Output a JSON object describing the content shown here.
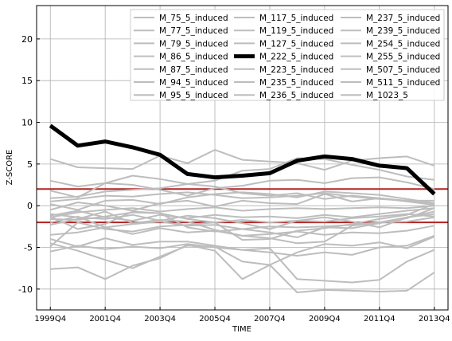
{
  "chart_data": {
    "type": "line",
    "title": "",
    "xlabel": "TIME",
    "ylabel": "Z-SCORE",
    "x_categories": [
      "1999Q4",
      "2000Q4",
      "2001Q4",
      "2002Q4",
      "2003Q4",
      "2004Q4",
      "2005Q4",
      "2006Q4",
      "2007Q4",
      "2008Q4",
      "2009Q4",
      "2010Q4",
      "2011Q4",
      "2012Q4",
      "2013Q4"
    ],
    "x_tick_labels": [
      "1999Q4",
      "2001Q4",
      "2003Q4",
      "2005Q4",
      "2007Q4",
      "2009Q4",
      "2011Q4",
      "2013Q4"
    ],
    "ylim": [
      -12.5,
      24
    ],
    "y_ticks": [
      -10,
      -5,
      0,
      5,
      10,
      15,
      20
    ],
    "grid": true,
    "legend_position": "top-right",
    "reference_lines": [
      {
        "y": 2,
        "color": "#b22222"
      },
      {
        "y": -2,
        "color": "#b22222"
      }
    ],
    "colors": {
      "background_series": "#bdbdbd",
      "highlight_series": "#000000",
      "reference": "#b22222"
    },
    "highlight_series": "M_222_5_induced",
    "series": [
      {
        "name": "M_75_5_induced",
        "values": [
          5.6,
          4.6,
          4.5,
          4.4,
          6.0,
          5.1,
          6.7,
          5.5,
          5.3,
          5.1,
          4.3,
          5.4,
          5.7,
          5.9,
          4.8
        ]
      },
      {
        "name": "M_77_5_induced",
        "values": [
          3.0,
          2.3,
          2.7,
          3.6,
          3.2,
          2.6,
          3.0,
          4.2,
          4.4,
          5.7,
          5.6,
          4.9,
          4.3,
          3.5,
          3.1
        ]
      },
      {
        "name": "M_79_5_induced",
        "values": [
          1.8,
          1.0,
          2.7,
          2.5,
          1.9,
          1.2,
          2.1,
          2.4,
          3.0,
          3.1,
          2.7,
          3.3,
          3.4,
          2.8,
          2.0
        ]
      },
      {
        "name": "M_86_5_induced",
        "values": [
          0.9,
          1.1,
          1.7,
          1.9,
          2.1,
          2.6,
          2.3,
          1.5,
          1.2,
          1.5,
          0.8,
          1.2,
          0.9,
          0.6,
          0.6
        ]
      },
      {
        "name": "M_87_5_induced",
        "values": [
          0.2,
          -0.5,
          0.6,
          0.7,
          0.2,
          1.0,
          1.4,
          1.6,
          1.4,
          1.0,
          1.7,
          1.5,
          1.3,
          0.8,
          0.3
        ]
      },
      {
        "name": "M_94_5_induced",
        "values": [
          -0.5,
          0.4,
          0.0,
          -0.6,
          0.3,
          0.6,
          -0.1,
          0.6,
          0.3,
          0.2,
          1.4,
          0.5,
          0.9,
          0.5,
          0.1
        ]
      },
      {
        "name": "M_95_5_induced",
        "values": [
          -1.4,
          -0.8,
          -0.5,
          -0.3,
          -0.7,
          -0.4,
          -0.2,
          -0.6,
          -0.4,
          -0.3,
          -0.4,
          -0.3,
          -0.2,
          -0.3,
          0.0
        ]
      },
      {
        "name": "M_117_5_induced",
        "values": [
          -1.2,
          -0.6,
          -1.4,
          -1.8,
          -1.1,
          -1.5,
          -1.1,
          -1.4,
          -1.3,
          -1.5,
          -1.1,
          -1.4,
          -1.0,
          -0.6,
          -0.3
        ]
      },
      {
        "name": "M_119_5_induced",
        "values": [
          -1.6,
          -1.7,
          -1.3,
          -0.8,
          -0.9,
          -1.6,
          -2.0,
          -1.7,
          -2.0,
          -1.8,
          -1.9,
          -1.5,
          -1.3,
          -1.0,
          -1.3
        ]
      },
      {
        "name": "M_127_5_induced",
        "values": [
          -2.0,
          -1.3,
          -2.6,
          -2.2,
          -1.9,
          -2.4,
          -2.3,
          -2.8,
          -2.5,
          -2.6,
          -2.5,
          -2.3,
          -2.0,
          -1.4,
          -1.0
        ]
      },
      {
        "name": "M_222_5_induced",
        "values": [
          9.6,
          7.2,
          7.7,
          7.0,
          6.1,
          3.8,
          3.4,
          3.6,
          3.9,
          5.4,
          5.9,
          5.6,
          4.8,
          4.5,
          1.4
        ]
      },
      {
        "name": "M_223_5_induced",
        "values": [
          -1.3,
          -2.8,
          -2.2,
          -0.7,
          -0.9,
          -2.6,
          -3.1,
          -2.8,
          -3.2,
          -3.8,
          -2.6,
          -2.7,
          -2.1,
          -1.5,
          -0.3
        ]
      },
      {
        "name": "M_235_5_induced",
        "values": [
          -2.3,
          -1.6,
          -0.7,
          -2.1,
          -1.7,
          -1.9,
          -2.9,
          -3.6,
          -3.9,
          -4.5,
          -4.3,
          -2.4,
          -2.0,
          -1.9,
          -1.4
        ]
      },
      {
        "name": "M_236_5_induced",
        "values": [
          -4.9,
          -2.0,
          -2.8,
          -3.1,
          -2.5,
          -2.3,
          -2.0,
          -4.1,
          -4.0,
          -3.0,
          -2.7,
          -2.2,
          -1.6,
          -1.1,
          0.2
        ]
      },
      {
        "name": "M_237_5_induced",
        "values": [
          -4.0,
          -4.9,
          -3.9,
          -4.7,
          -4.3,
          -4.3,
          -4.8,
          -5.3,
          -5.6,
          -6.0,
          -5.6,
          -5.9,
          -5.0,
          -4.8,
          -3.6
        ]
      },
      {
        "name": "M_239_5_induced",
        "values": [
          -4.5,
          -5.4,
          -6.5,
          -7.5,
          -6.1,
          -4.8,
          -4.9,
          -6.7,
          -7.1,
          -5.6,
          -4.6,
          -4.8,
          -4.4,
          -5.1,
          -3.7
        ]
      },
      {
        "name": "M_254_5_induced",
        "values": [
          -7.6,
          -7.4,
          -8.8,
          -7.2,
          -6.3,
          -4.7,
          -5.4,
          -8.8,
          -7.1,
          -10.4,
          -10.1,
          -10.2,
          -10.3,
          -10.2,
          -8.0
        ]
      },
      {
        "name": "M_255_5_induced",
        "values": [
          -1.0,
          -1.4,
          -1.6,
          -1.1,
          -1.8,
          -1.2,
          -1.5,
          -2.1,
          -2.8,
          -1.8,
          -1.4,
          -1.9,
          -2.6,
          -1.4,
          -0.7
        ]
      },
      {
        "name": "M_507_5_induced",
        "values": [
          -3.5,
          -3.2,
          -2.6,
          -3.4,
          -2.7,
          -3.2,
          -3.0,
          -3.6,
          -3.4,
          -3.1,
          -3.5,
          -3.2,
          -3.3,
          -3.0,
          -2.4
        ]
      },
      {
        "name": "M_511_5_induced",
        "values": [
          -5.5,
          -4.8,
          -5.2,
          -4.9,
          -5.1,
          -4.6,
          -5.0,
          -5.3,
          -5.1,
          -8.8,
          -9.0,
          -9.2,
          -8.9,
          -6.7,
          -5.3
        ]
      },
      {
        "name": "M_1023_5",
        "values": [
          0.5,
          0.8,
          1.2,
          1.1,
          1.4,
          1.6,
          1.3,
          0.9,
          1.0,
          1.2,
          1.5,
          1.1,
          0.8,
          0.6,
          0.2
        ]
      }
    ]
  }
}
